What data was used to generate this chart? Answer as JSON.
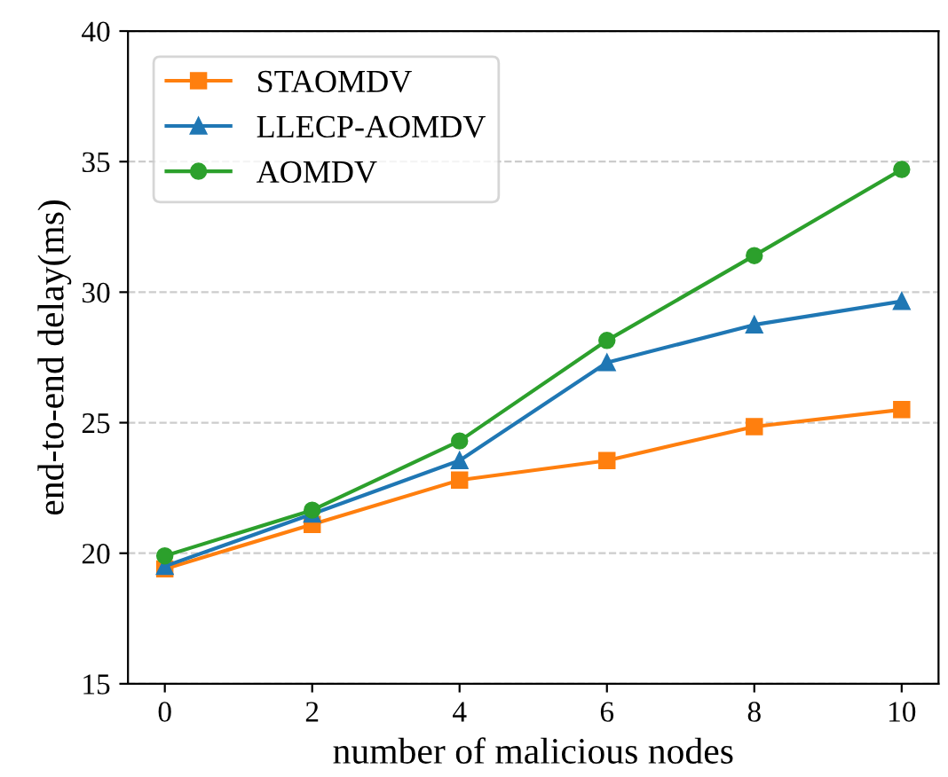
{
  "chart_data": {
    "type": "line",
    "xlabel": "number of malicious nodes",
    "ylabel": "end-to-end delay(ms)",
    "x": [
      0,
      2,
      4,
      6,
      8,
      10
    ],
    "series": [
      {
        "name": "STAOMDV",
        "color": "#ff7f0e",
        "marker": "square",
        "values": [
          19.4,
          21.1,
          22.8,
          23.55,
          24.85,
          25.5
        ]
      },
      {
        "name": "LLECP-AOMDV",
        "color": "#1f77b4",
        "marker": "triangle",
        "values": [
          19.5,
          21.5,
          23.55,
          27.3,
          28.75,
          29.65
        ]
      },
      {
        "name": "AOMDV",
        "color": "#2ca02c",
        "marker": "circle",
        "values": [
          19.9,
          21.65,
          24.3,
          28.15,
          31.4,
          34.7
        ]
      }
    ],
    "xlim": [
      -0.5,
      10.5
    ],
    "xticks": [
      0,
      2,
      4,
      6,
      8,
      10
    ],
    "ylim": [
      15,
      40
    ],
    "yticks": [
      15,
      20,
      25,
      30,
      35,
      40
    ],
    "grid": "y",
    "legend": "top left",
    "line_style": "solid"
  }
}
